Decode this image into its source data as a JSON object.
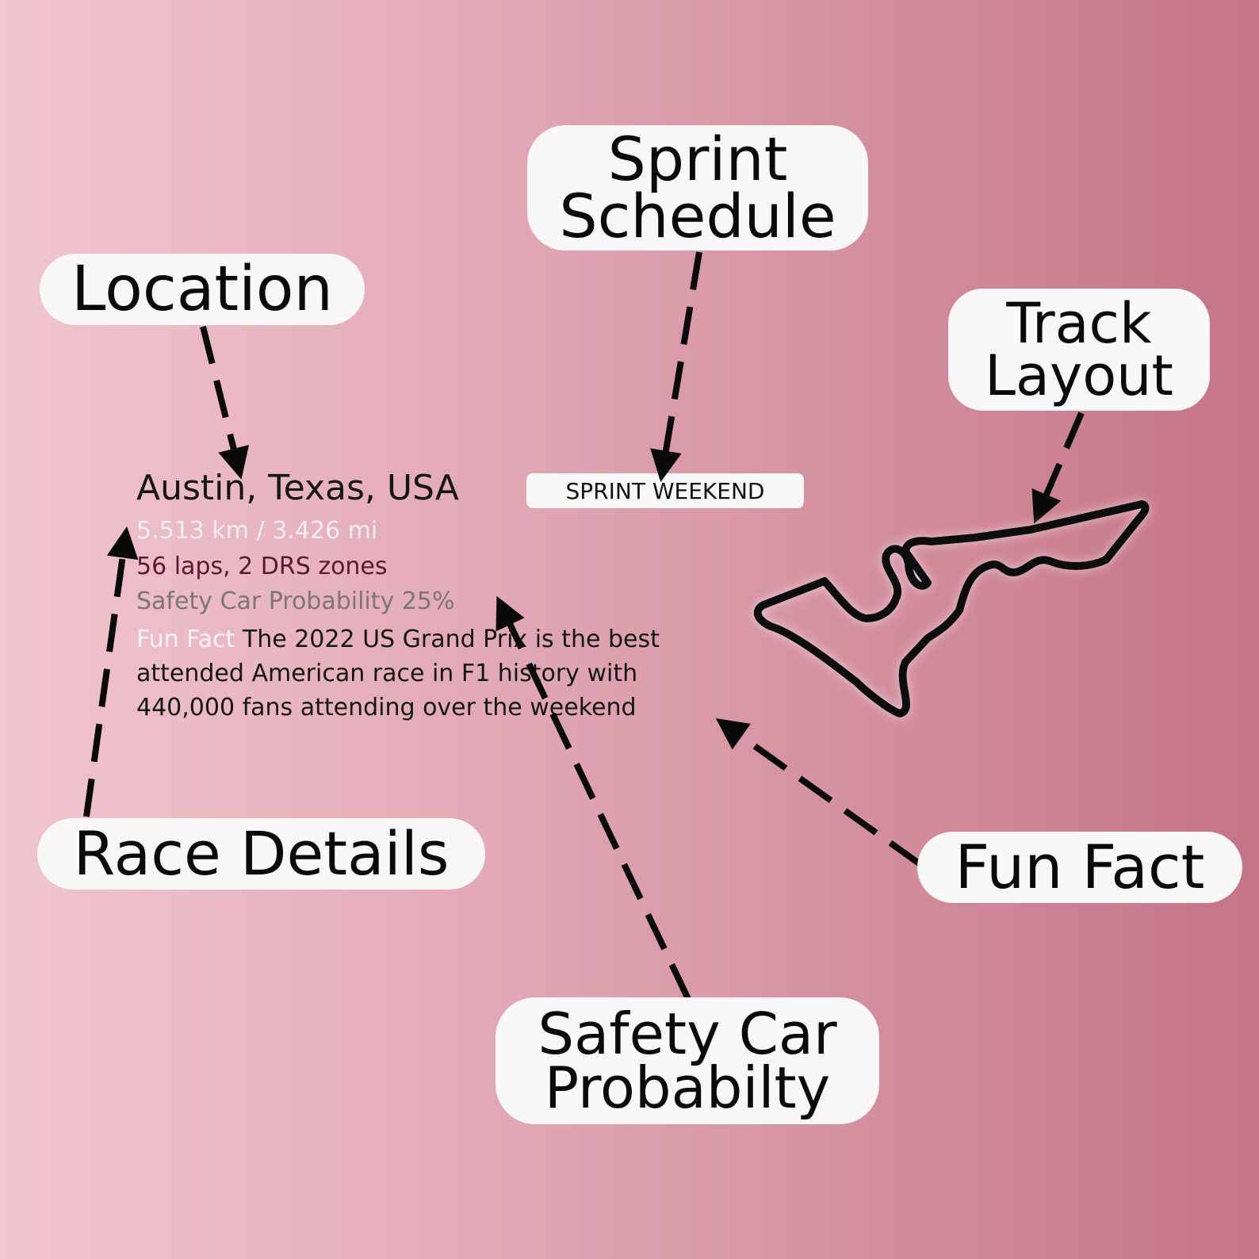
{
  "labels": {
    "location": "Location",
    "sprint_line1": "Sprint",
    "sprint_line2": "Schedule",
    "track_line1": "Track",
    "track_line2": "Layout",
    "race_details": "Race Details",
    "fun_fact": "Fun Fact",
    "safety_line1": "Safety Car",
    "safety_line2": "Probabilty"
  },
  "race": {
    "location": "Austin, Texas, USA",
    "distance": "5.513 km / 3.426 mi",
    "laps": "56 laps, 2 DRS zones",
    "safety_car": "Safety Car Probability 25%",
    "fun_fact_label": "Fun Fact",
    "fun_fact_text": "The 2022 US Grand Prix is the best attended American race in F1 history with 440,000 fans attending over the weekend",
    "sprint_badge": "SPRINT WEEKEND"
  },
  "colors": {
    "background_left": "#f1c6d0",
    "background_right": "#c47486",
    "label_bg": "#faf7f8",
    "arrow": "#0a0a0a",
    "distance_text": "#f4eef0",
    "laps_text": "#5b1a2c",
    "safety_text": "#7d7576"
  },
  "icons": [
    "track-layout-outline",
    "arrow"
  ]
}
